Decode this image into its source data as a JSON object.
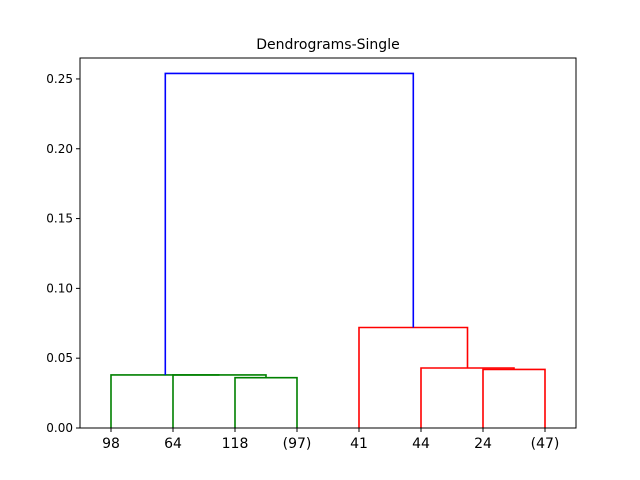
{
  "chart_data": {
    "type": "dendrogram",
    "title": "Dendrograms-Single",
    "xlabel": "",
    "ylabel": "",
    "ylim": [
      0,
      0.265
    ],
    "yticks": [
      0.0,
      0.05,
      0.1,
      0.15,
      0.2,
      0.25
    ],
    "ytick_labels": [
      "0.00",
      "0.05",
      "0.10",
      "0.15",
      "0.20",
      "0.25"
    ],
    "grid": false,
    "leaves": [
      "98",
      "64",
      "118",
      "(97)",
      "41",
      "44",
      "24",
      "(47)"
    ],
    "links": [
      {
        "name": "merge-118-97",
        "x": [
          3,
          3,
          4,
          4
        ],
        "y": [
          0.0,
          0.036,
          0.036,
          0.0
        ],
        "color": "#008000"
      },
      {
        "name": "merge-64-118",
        "x": [
          2,
          2,
          3.5,
          3.5
        ],
        "y": [
          0.0,
          0.038,
          0.038,
          0.036
        ],
        "color": "#008000"
      },
      {
        "name": "merge-98-64",
        "x": [
          1,
          1,
          2.75,
          2.75
        ],
        "y": [
          0.0,
          0.038,
          0.038,
          0.038
        ],
        "color": "#008000"
      },
      {
        "name": "merge-24-47",
        "x": [
          7,
          7,
          8,
          8
        ],
        "y": [
          0.0,
          0.042,
          0.042,
          0.0
        ],
        "color": "#ff0000"
      },
      {
        "name": "merge-44-24",
        "x": [
          6,
          6,
          7.5,
          7.5
        ],
        "y": [
          0.0,
          0.043,
          0.043,
          0.042
        ],
        "color": "#ff0000"
      },
      {
        "name": "merge-41-44",
        "x": [
          5,
          5,
          6.75,
          6.75
        ],
        "y": [
          0.0,
          0.072,
          0.072,
          0.043
        ],
        "color": "#ff0000"
      },
      {
        "name": "merge-root",
        "x": [
          1.875,
          1.875,
          5.875,
          5.875
        ],
        "y": [
          0.038,
          0.254,
          0.254,
          0.072
        ],
        "color": "#0000ff"
      }
    ]
  }
}
